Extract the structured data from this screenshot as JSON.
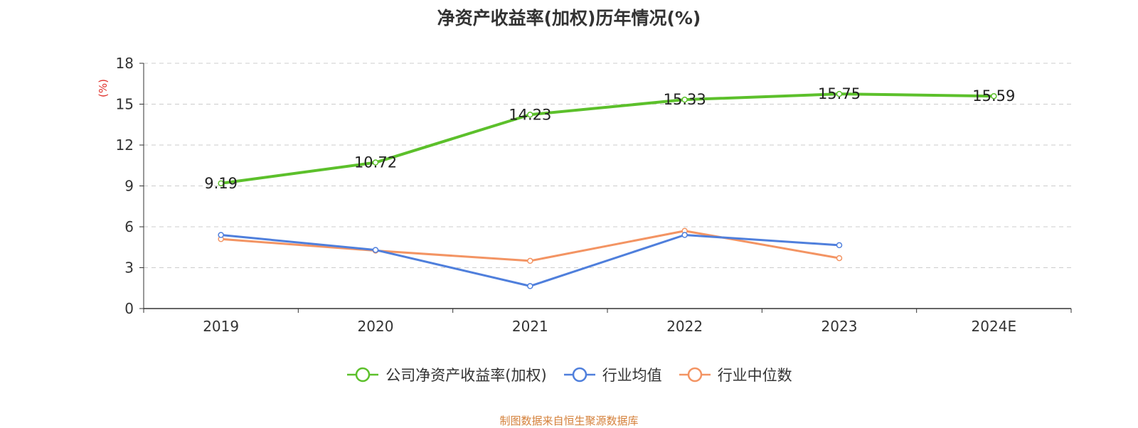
{
  "chart_data": {
    "type": "line",
    "title": "净资产收益率(加权)历年情况(%)",
    "ylabel": "(%)",
    "categories": [
      "2019",
      "2020",
      "2021",
      "2022",
      "2023",
      "2024E"
    ],
    "yticks": [
      "0",
      "3",
      "6",
      "9",
      "12",
      "15",
      "18"
    ],
    "ylim": [
      0,
      18
    ],
    "grid": true,
    "legend_position": "bottom",
    "series": [
      {
        "name": "公司净资产收益率(加权)",
        "color": "#5cc02b",
        "values": [
          9.19,
          10.72,
          14.23,
          15.33,
          15.75,
          15.59
        ],
        "labels": [
          "9.19",
          "10.72",
          "14.23",
          "15.33",
          "15.75",
          "15.59"
        ]
      },
      {
        "name": "行业均值",
        "color": "#4f7fdc",
        "values": [
          5.4,
          4.3,
          1.65,
          5.4,
          4.65,
          null
        ]
      },
      {
        "name": "行业中位数",
        "color": "#f39463",
        "values": [
          5.1,
          4.25,
          3.5,
          5.7,
          3.7,
          null
        ]
      }
    ]
  },
  "footer": {
    "source": "制图数据来自恒生聚源数据库"
  }
}
